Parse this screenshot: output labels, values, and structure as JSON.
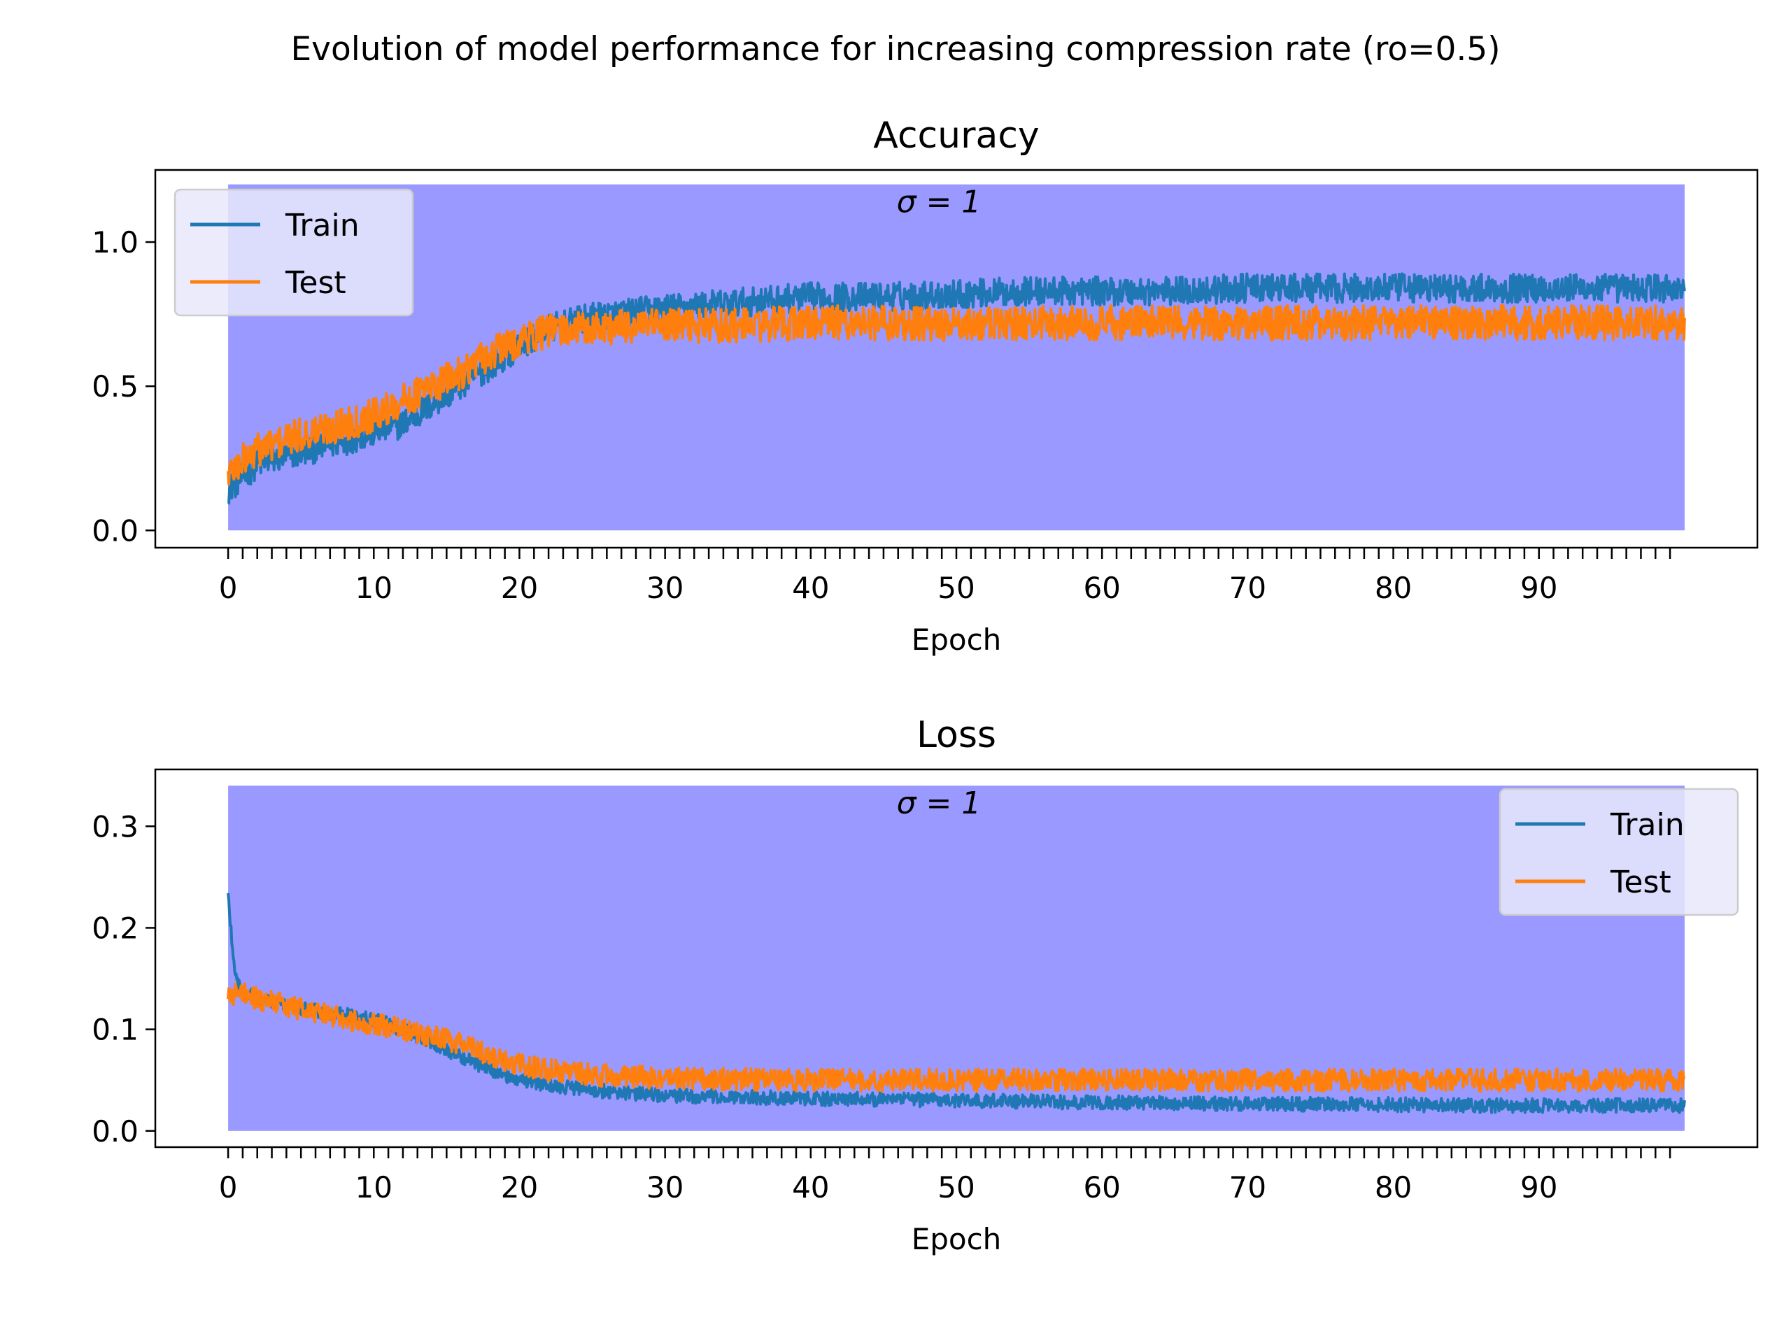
{
  "figure": {
    "suptitle": "Evolution of model performance for increasing compression rate (ro=0.5)"
  },
  "colors": {
    "train": "#1f77b4",
    "test": "#ff7f0e",
    "band": "#9999ff",
    "legend_bg": "#e8e8fb",
    "axis": "#000000"
  },
  "chart_data": [
    {
      "type": "line",
      "title": "Accuracy",
      "xlabel": "Epoch",
      "ylabel": "",
      "xlim": [
        -5,
        105
      ],
      "ylim": [
        -0.06,
        1.25
      ],
      "x_ticks": [
        0,
        10,
        20,
        30,
        40,
        50,
        60,
        70,
        80,
        90
      ],
      "x_tick_labels": [
        "0",
        "10",
        "20",
        "30",
        "40",
        "50",
        "60",
        "70",
        "80",
        "90"
      ],
      "y_ticks": [
        0.0,
        0.5,
        1.0
      ],
      "y_tick_labels": [
        "0.0",
        "0.5",
        "1.0"
      ],
      "legend_position": "top-left",
      "band": {
        "label": "σ = 1",
        "x_range": [
          0,
          100
        ],
        "y_range": [
          0,
          1.2
        ]
      },
      "x": [
        0,
        2,
        5,
        8,
        10,
        12,
        15,
        18,
        20,
        22,
        25,
        30,
        35,
        40,
        45,
        50,
        55,
        60,
        65,
        70,
        75,
        80,
        85,
        90,
        95,
        100
      ],
      "series": [
        {
          "name": "Train",
          "values": [
            0.14,
            0.23,
            0.27,
            0.31,
            0.34,
            0.37,
            0.47,
            0.57,
            0.64,
            0.7,
            0.74,
            0.77,
            0.79,
            0.81,
            0.81,
            0.82,
            0.83,
            0.83,
            0.83,
            0.84,
            0.84,
            0.84,
            0.84,
            0.84,
            0.84,
            0.84
          ],
          "noise": 0.05
        },
        {
          "name": "Test",
          "values": [
            0.2,
            0.28,
            0.33,
            0.37,
            0.4,
            0.45,
            0.52,
            0.61,
            0.66,
            0.69,
            0.7,
            0.71,
            0.71,
            0.72,
            0.72,
            0.71,
            0.72,
            0.72,
            0.72,
            0.72,
            0.72,
            0.72,
            0.72,
            0.72,
            0.72,
            0.72
          ],
          "noise": 0.06
        }
      ]
    },
    {
      "type": "line",
      "title": "Loss",
      "xlabel": "Epoch",
      "ylabel": "",
      "xlim": [
        -5,
        105
      ],
      "ylim": [
        -0.016,
        0.356
      ],
      "x_ticks": [
        0,
        10,
        20,
        30,
        40,
        50,
        60,
        70,
        80,
        90
      ],
      "x_tick_labels": [
        "0",
        "10",
        "20",
        "30",
        "40",
        "50",
        "60",
        "70",
        "80",
        "90"
      ],
      "y_ticks": [
        0.0,
        0.1,
        0.2,
        0.3
      ],
      "y_tick_labels": [
        "0.0",
        "0.1",
        "0.2",
        "0.3"
      ],
      "legend_position": "top-right",
      "band": {
        "label": "σ = 1",
        "x_range": [
          0,
          100
        ],
        "y_range": [
          0,
          0.34
        ]
      },
      "x": [
        0,
        0.5,
        1,
        2,
        5,
        8,
        10,
        12,
        15,
        18,
        20,
        22,
        25,
        30,
        35,
        40,
        45,
        50,
        55,
        60,
        65,
        70,
        75,
        80,
        85,
        90,
        95,
        100
      ],
      "series": [
        {
          "name": "Train",
          "values": [
            0.23,
            0.15,
            0.14,
            0.13,
            0.12,
            0.115,
            0.11,
            0.1,
            0.08,
            0.06,
            0.05,
            0.045,
            0.04,
            0.035,
            0.033,
            0.032,
            0.031,
            0.03,
            0.029,
            0.028,
            0.027,
            0.027,
            0.026,
            0.026,
            0.025,
            0.025,
            0.025,
            0.025
          ],
          "noise": 0.007
        },
        {
          "name": "Test",
          "values": [
            0.13,
            0.135,
            0.135,
            0.13,
            0.12,
            0.11,
            0.105,
            0.1,
            0.09,
            0.075,
            0.065,
            0.06,
            0.055,
            0.052,
            0.051,
            0.05,
            0.05,
            0.05,
            0.05,
            0.05,
            0.05,
            0.05,
            0.05,
            0.05,
            0.05,
            0.05,
            0.05,
            0.05
          ],
          "noise": 0.011
        }
      ]
    }
  ]
}
